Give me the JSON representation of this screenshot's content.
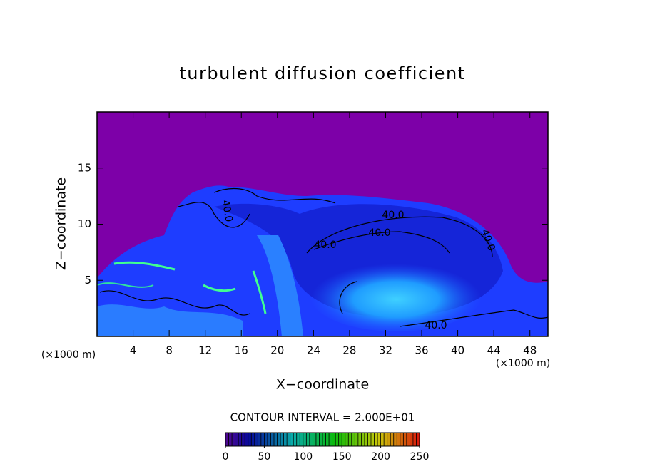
{
  "chart_data": {
    "type": "contour",
    "title": "turbulent diffusion coefficient",
    "x_label": "X−coordinate",
    "y_label": "Z−coordinate",
    "x_unit_left": "(×1000 m)",
    "x_unit_right": "(×1000 m)",
    "xlim": [
      0,
      50
    ],
    "xticks": [
      4,
      8,
      12,
      16,
      20,
      24,
      28,
      32,
      36,
      40,
      44,
      48
    ],
    "ylim": [
      0,
      20
    ],
    "yticks": [
      5,
      10,
      15
    ],
    "contour_interval_text": "CONTOUR INTERVAL = 2.000E+01",
    "contour_labels": [
      "40.0",
      "40.0",
      "40.0",
      "40.0",
      "40.0",
      "40.0"
    ],
    "colorbar": {
      "lim": [
        0,
        250
      ],
      "ticks": [
        0,
        50,
        100,
        150,
        200,
        250
      ]
    }
  }
}
